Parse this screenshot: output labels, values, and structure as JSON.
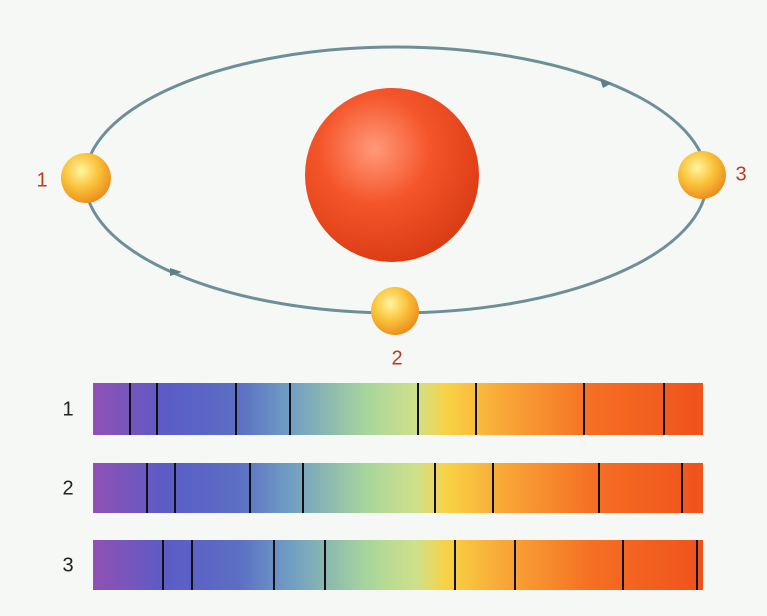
{
  "orbit": {
    "positions": [
      {
        "label": "1"
      },
      {
        "label": "2"
      },
      {
        "label": "3"
      }
    ]
  },
  "spectra": [
    {
      "label": "1"
    },
    {
      "label": "2"
    },
    {
      "label": "3"
    }
  ]
}
